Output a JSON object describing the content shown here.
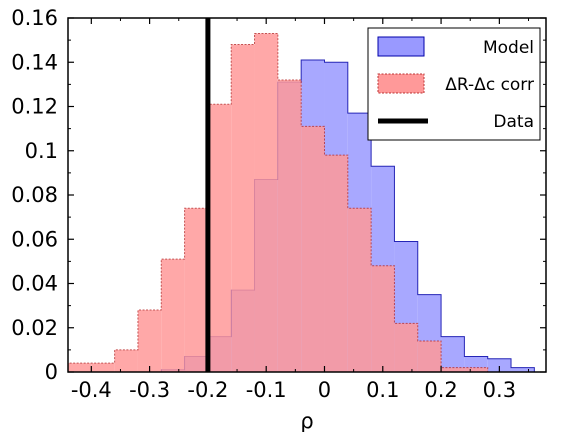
{
  "chart_data": {
    "type": "histogram",
    "xlabel": "ρ",
    "ylabel": "",
    "xlim": [
      -0.44,
      0.38
    ],
    "ylim": [
      0,
      0.16
    ],
    "bin_width": 0.04,
    "x_ticks": [
      -0.4,
      -0.3,
      -0.2,
      -0.1,
      0,
      0.1,
      0.2,
      0.3
    ],
    "x_tick_labels": [
      "-0.4",
      "-0.3",
      "-0.2",
      "-0.1",
      "0",
      "0.1",
      "0.2",
      "0.3"
    ],
    "y_ticks": [
      0,
      0.02,
      0.04,
      0.06,
      0.08,
      0.1,
      0.12,
      0.14,
      0.16
    ],
    "y_tick_labels": [
      "0",
      "0.02",
      "0.04",
      "0.06",
      "0.08",
      "0.1",
      "0.12",
      "0.14",
      "0.16"
    ],
    "legend_position": "top-right",
    "series": [
      {
        "name": "Model",
        "color": "#9999ff",
        "edge": "#0000aa",
        "bins": [
          {
            "x0": -0.44,
            "x1": -0.4,
            "y": 0.0
          },
          {
            "x0": -0.4,
            "x1": -0.36,
            "y": 0.0
          },
          {
            "x0": -0.36,
            "x1": -0.32,
            "y": 0.0
          },
          {
            "x0": -0.32,
            "x1": -0.28,
            "y": 0.0
          },
          {
            "x0": -0.28,
            "x1": -0.24,
            "y": 0.001
          },
          {
            "x0": -0.24,
            "x1": -0.2,
            "y": 0.007
          },
          {
            "x0": -0.2,
            "x1": -0.16,
            "y": 0.016
          },
          {
            "x0": -0.16,
            "x1": -0.12,
            "y": 0.037
          },
          {
            "x0": -0.12,
            "x1": -0.08,
            "y": 0.087
          },
          {
            "x0": -0.08,
            "x1": -0.04,
            "y": 0.131
          },
          {
            "x0": -0.04,
            "x1": 0.0,
            "y": 0.141
          },
          {
            "x0": 0.0,
            "x1": 0.04,
            "y": 0.14
          },
          {
            "x0": 0.04,
            "x1": 0.08,
            "y": 0.117
          },
          {
            "x0": 0.08,
            "x1": 0.12,
            "y": 0.093
          },
          {
            "x0": 0.12,
            "x1": 0.16,
            "y": 0.059
          },
          {
            "x0": 0.16,
            "x1": 0.2,
            "y": 0.035
          },
          {
            "x0": 0.2,
            "x1": 0.24,
            "y": 0.016
          },
          {
            "x0": 0.24,
            "x1": 0.28,
            "y": 0.007
          },
          {
            "x0": 0.28,
            "x1": 0.32,
            "y": 0.006
          },
          {
            "x0": 0.32,
            "x1": 0.36,
            "y": 0.002
          }
        ]
      },
      {
        "name": "ΔR-Δc corr",
        "color": "#ff9999",
        "edge": "#bb3333",
        "bins": [
          {
            "x0": -0.44,
            "x1": -0.4,
            "y": 0.004
          },
          {
            "x0": -0.4,
            "x1": -0.36,
            "y": 0.004
          },
          {
            "x0": -0.36,
            "x1": -0.32,
            "y": 0.01
          },
          {
            "x0": -0.32,
            "x1": -0.28,
            "y": 0.028
          },
          {
            "x0": -0.28,
            "x1": -0.24,
            "y": 0.051
          },
          {
            "x0": -0.24,
            "x1": -0.2,
            "y": 0.074
          },
          {
            "x0": -0.2,
            "x1": -0.16,
            "y": 0.121
          },
          {
            "x0": -0.16,
            "x1": -0.12,
            "y": 0.148
          },
          {
            "x0": -0.12,
            "x1": -0.08,
            "y": 0.153
          },
          {
            "x0": -0.08,
            "x1": -0.04,
            "y": 0.132
          },
          {
            "x0": -0.04,
            "x1": 0.0,
            "y": 0.111
          },
          {
            "x0": 0.0,
            "x1": 0.04,
            "y": 0.098
          },
          {
            "x0": 0.04,
            "x1": 0.08,
            "y": 0.074
          },
          {
            "x0": 0.08,
            "x1": 0.12,
            "y": 0.048
          },
          {
            "x0": 0.12,
            "x1": 0.16,
            "y": 0.022
          },
          {
            "x0": 0.16,
            "x1": 0.2,
            "y": 0.014
          },
          {
            "x0": 0.2,
            "x1": 0.24,
            "y": 0.002
          },
          {
            "x0": 0.24,
            "x1": 0.28,
            "y": 0.002
          },
          {
            "x0": 0.28,
            "x1": 0.32,
            "y": 0.0
          },
          {
            "x0": 0.32,
            "x1": 0.36,
            "y": 0.0
          }
        ]
      }
    ],
    "data_line": {
      "name": "Data",
      "x": -0.2,
      "color": "#000000"
    }
  }
}
